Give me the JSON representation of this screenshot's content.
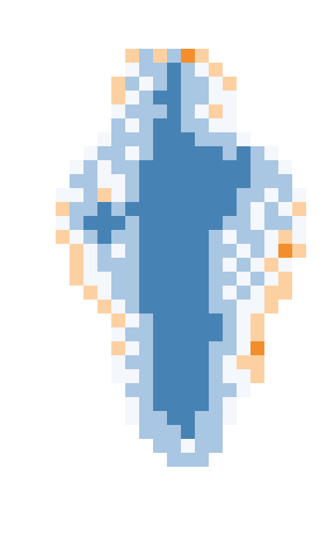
{
  "chart_data": {
    "type": "heatmap",
    "tick_labels": false,
    "levels": [
      -2,
      -1,
      0,
      1,
      2
    ],
    "colors": [
      "#f28e2b",
      "#fdd0a2",
      "#f4f7fb",
      "#a9c6e2",
      "#4682b4"
    ],
    "cells": [
      [
        null,
        null,
        null,
        null,
        null,
        -1,
        1,
        -1,
        1,
        -2,
        -1,
        null,
        null,
        null,
        null,
        null,
        null,
        null
      ],
      [
        null,
        null,
        null,
        null,
        null,
        0,
        1,
        1,
        2,
        1,
        0,
        -1,
        null,
        null,
        null,
        null,
        null,
        null
      ],
      [
        null,
        null,
        null,
        null,
        -1,
        1,
        0,
        1,
        2,
        1,
        1,
        0,
        -1,
        null,
        null,
        null,
        null,
        null
      ],
      [
        null,
        null,
        null,
        null,
        -1,
        0,
        1,
        2,
        2,
        1,
        1,
        0,
        0,
        null,
        null,
        null,
        null,
        null
      ],
      [
        null,
        null,
        null,
        null,
        0,
        1,
        1,
        1,
        2,
        1,
        0,
        -1,
        0,
        null,
        null,
        null,
        null,
        null
      ],
      [
        null,
        null,
        null,
        null,
        1,
        0,
        1,
        2,
        2,
        1,
        1,
        0,
        0,
        null,
        null,
        null,
        null,
        null
      ],
      [
        null,
        null,
        null,
        0,
        1,
        1,
        1,
        2,
        2,
        2,
        1,
        1,
        1,
        0,
        null,
        null,
        null,
        null
      ],
      [
        null,
        null,
        0,
        1,
        1,
        0,
        1,
        2,
        2,
        2,
        2,
        2,
        1,
        2,
        1,
        0,
        null,
        null
      ],
      [
        null,
        0,
        1,
        0,
        1,
        1,
        2,
        2,
        2,
        2,
        2,
        2,
        2,
        2,
        1,
        1,
        0,
        null
      ],
      [
        null,
        1,
        1,
        0,
        0,
        1,
        2,
        2,
        2,
        2,
        2,
        2,
        2,
        2,
        1,
        1,
        1,
        null
      ],
      [
        0,
        0,
        1,
        -1,
        0,
        1,
        2,
        2,
        2,
        2,
        2,
        2,
        2,
        1,
        1,
        0,
        1,
        0
      ],
      [
        -1,
        1,
        1,
        2,
        1,
        2,
        2,
        2,
        2,
        2,
        2,
        2,
        2,
        1,
        0,
        1,
        0,
        -1
      ],
      [
        0,
        1,
        2,
        2,
        2,
        1,
        2,
        2,
        2,
        2,
        2,
        2,
        1,
        1,
        0,
        1,
        1,
        0
      ],
      [
        -1,
        0,
        1,
        2,
        1,
        1,
        2,
        2,
        2,
        2,
        2,
        1,
        0,
        1,
        1,
        0,
        -1,
        0
      ],
      [
        null,
        -1,
        0,
        1,
        0,
        1,
        2,
        2,
        2,
        2,
        2,
        1,
        1,
        0,
        1,
        0,
        -2,
        -1
      ],
      [
        null,
        -1,
        0,
        1,
        1,
        1,
        2,
        2,
        2,
        2,
        2,
        1,
        0,
        1,
        0,
        -1,
        0,
        null
      ],
      [
        null,
        -1,
        0,
        0,
        1,
        1,
        2,
        2,
        2,
        2,
        2,
        1,
        1,
        0,
        1,
        0,
        -1,
        null
      ],
      [
        null,
        null,
        -1,
        0,
        1,
        1,
        2,
        2,
        2,
        2,
        2,
        1,
        0,
        1,
        0,
        -1,
        -1,
        null
      ],
      [
        null,
        null,
        null,
        -1,
        0,
        1,
        2,
        2,
        2,
        2,
        2,
        1,
        1,
        0,
        0,
        -1,
        null,
        null
      ],
      [
        null,
        null,
        null,
        null,
        -1,
        0,
        1,
        2,
        2,
        2,
        2,
        2,
        1,
        0,
        -1,
        null,
        null,
        null
      ],
      [
        null,
        null,
        null,
        null,
        0,
        1,
        1,
        2,
        2,
        2,
        2,
        2,
        1,
        0,
        -1,
        null,
        null,
        null
      ],
      [
        null,
        null,
        null,
        null,
        -1,
        0,
        1,
        2,
        2,
        2,
        2,
        1,
        1,
        0,
        -2,
        null,
        null,
        null
      ],
      [
        null,
        null,
        null,
        null,
        0,
        1,
        1,
        2,
        2,
        2,
        2,
        1,
        0,
        -1,
        -1,
        null,
        null,
        null
      ],
      [
        null,
        null,
        null,
        null,
        0,
        0,
        1,
        2,
        2,
        2,
        2,
        1,
        0,
        0,
        -1,
        null,
        null,
        null
      ],
      [
        null,
        null,
        null,
        null,
        null,
        1,
        1,
        2,
        2,
        2,
        2,
        1,
        1,
        0,
        null,
        null,
        null,
        null
      ],
      [
        null,
        null,
        null,
        null,
        null,
        0,
        1,
        2,
        2,
        2,
        2,
        1,
        0,
        null,
        null,
        null,
        null,
        null
      ],
      [
        null,
        null,
        null,
        null,
        null,
        0,
        1,
        1,
        2,
        2,
        1,
        1,
        0,
        null,
        null,
        null,
        null,
        null
      ],
      [
        null,
        null,
        null,
        null,
        null,
        null,
        1,
        1,
        1,
        2,
        1,
        1,
        null,
        null,
        null,
        null,
        null,
        null
      ],
      [
        null,
        null,
        null,
        null,
        null,
        null,
        null,
        1,
        1,
        0,
        1,
        1,
        null,
        null,
        null,
        null,
        null,
        null
      ],
      [
        null,
        null,
        null,
        null,
        null,
        null,
        null,
        null,
        1,
        1,
        1,
        null,
        null,
        null,
        null,
        null,
        null,
        null
      ]
    ]
  }
}
